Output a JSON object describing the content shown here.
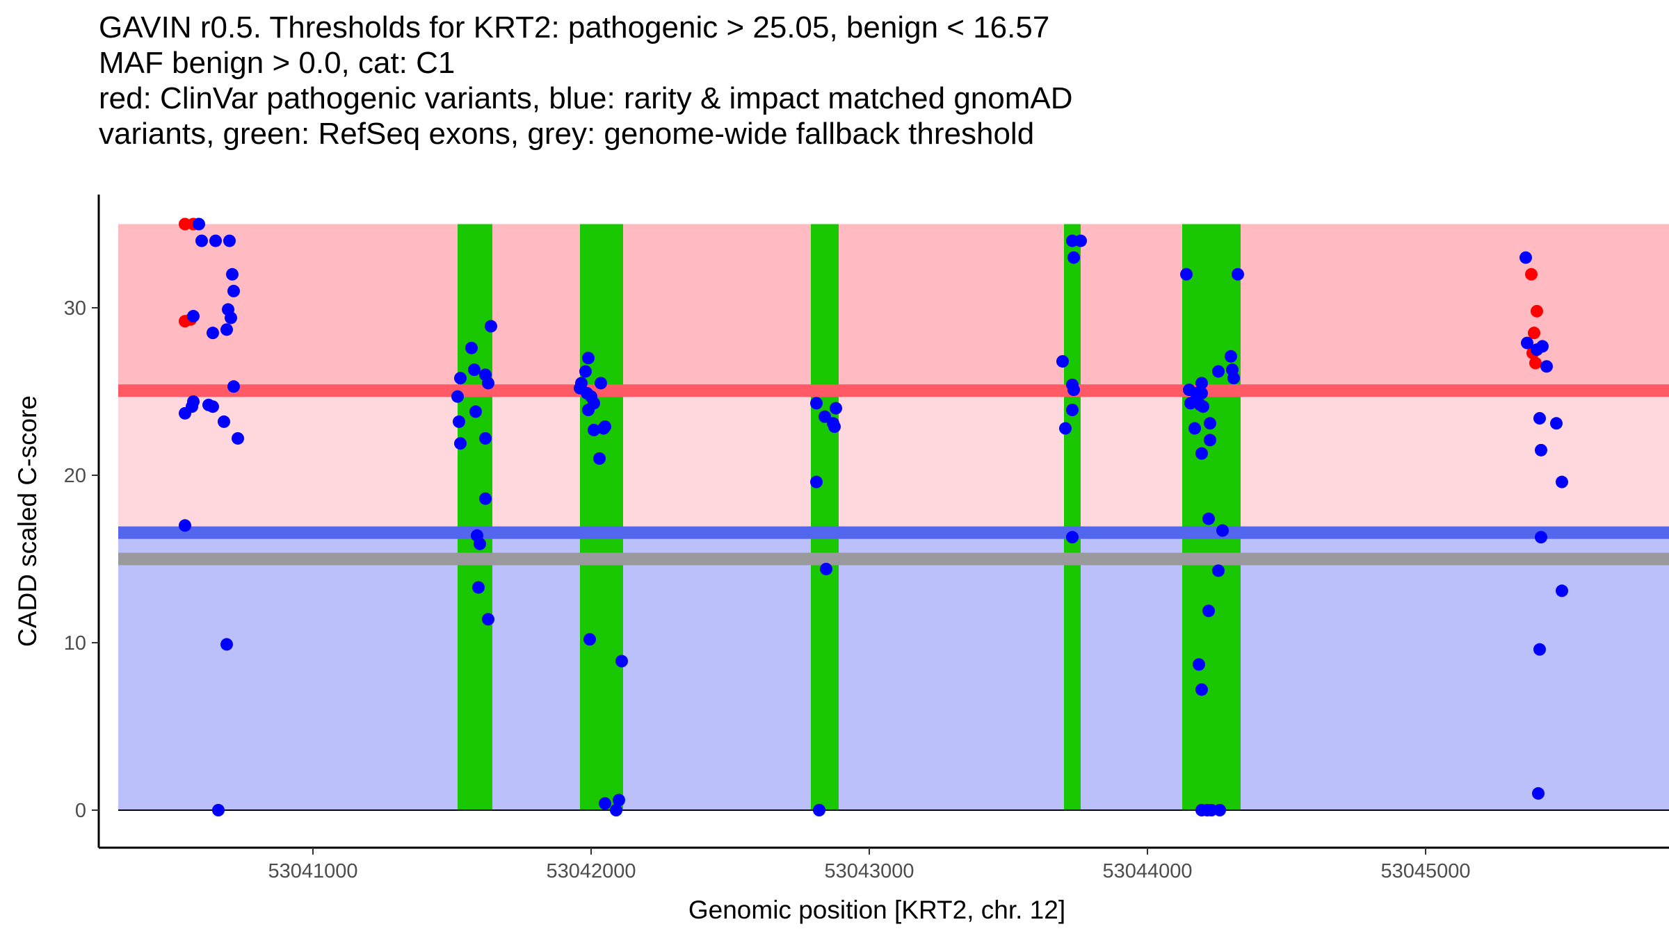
{
  "chart_data": {
    "type": "scatter",
    "title_lines": [
      "GAVIN r0.5. Thresholds for KRT2: pathogenic > 25.05, benign < 16.57",
      "MAF benign > 0.0, cat: C1",
      "red: ClinVar pathogenic variants, blue: rarity & impact matched gnomAD",
      "variants, green: RefSeq exons, grey: genome-wide fallback threshold"
    ],
    "xlabel": "Genomic position [KRT2, chr. 12]",
    "ylabel": "CADD scaled C-score",
    "xlim": [
      53040300,
      53045750
    ],
    "ylim": [
      -1.8,
      35.0
    ],
    "x_ticks": [
      53041000,
      53042000,
      53043000,
      53044000,
      53045000
    ],
    "x_tick_labels": [
      "53041000",
      "53042000",
      "53043000",
      "53044000",
      "53045000"
    ],
    "y_ticks": [
      0,
      10,
      20,
      30
    ],
    "y_tick_labels": [
      "0",
      "10",
      "20",
      "30"
    ],
    "grid": false,
    "thresholds": {
      "pathogenic": 25.05,
      "benign": 16.57,
      "genome_wide_fallback": 15.0,
      "maf_benign": 0.0,
      "category": "C1"
    },
    "regions": [
      {
        "name": "pathogenic-zone",
        "y": [
          25.05,
          35.0
        ],
        "color": "#ffbbc1"
      },
      {
        "name": "uncertain-zone",
        "y": [
          16.57,
          25.05
        ],
        "color": "#ffd8dd"
      },
      {
        "name": "benign-zone",
        "y": [
          0,
          16.57
        ],
        "color": "#bbc0fa"
      }
    ],
    "threshold_lines": [
      {
        "name": "pathogenic-threshold",
        "y": 25.05,
        "color": "#ff5a66"
      },
      {
        "name": "benign-threshold",
        "y": 16.57,
        "color": "#5266ee"
      },
      {
        "name": "fallback-threshold",
        "y": 15.0,
        "color": "#9a9a9e"
      }
    ],
    "exons": [
      {
        "start": 53041520,
        "end": 53041645
      },
      {
        "start": 53041960,
        "end": 53042115
      },
      {
        "start": 53042790,
        "end": 53042890
      },
      {
        "start": 53043700,
        "end": 53043760
      },
      {
        "start": 53044125,
        "end": 53044335
      }
    ],
    "series": [
      {
        "name": "ClinVar pathogenic variants",
        "color": "#ff0000",
        "points": [
          [
            53040540,
            35.0
          ],
          [
            53040570,
            35.0
          ],
          [
            53040540,
            29.2
          ],
          [
            53040560,
            29.3
          ],
          [
            53045380,
            32.0
          ],
          [
            53045390,
            28.5
          ],
          [
            53045400,
            29.8
          ],
          [
            53045385,
            27.3
          ],
          [
            53045395,
            26.7
          ]
        ]
      },
      {
        "name": "gnomAD rarity & impact matched variants",
        "color": "#0000ff",
        "points": [
          [
            53040590,
            35.0
          ],
          [
            53040600,
            34.0
          ],
          [
            53040650,
            34.0
          ],
          [
            53040700,
            34.0
          ],
          [
            53040710,
            32.0
          ],
          [
            53040715,
            31.0
          ],
          [
            53040570,
            29.5
          ],
          [
            53040695,
            29.9
          ],
          [
            53040705,
            29.4
          ],
          [
            53040640,
            28.5
          ],
          [
            53040690,
            28.7
          ],
          [
            53040715,
            25.3
          ],
          [
            53040540,
            23.7
          ],
          [
            53040570,
            24.4
          ],
          [
            53040565,
            24.1
          ],
          [
            53040625,
            24.2
          ],
          [
            53040640,
            24.1
          ],
          [
            53040680,
            23.2
          ],
          [
            53040730,
            22.2
          ],
          [
            53040540,
            17.0
          ],
          [
            53040690,
            9.9
          ],
          [
            53040660,
            0.0
          ],
          [
            53041570,
            27.6
          ],
          [
            53041640,
            28.9
          ],
          [
            53041580,
            26.3
          ],
          [
            53041620,
            26.0
          ],
          [
            53041530,
            25.8
          ],
          [
            53041630,
            25.5
          ],
          [
            53041520,
            24.7
          ],
          [
            53041585,
            23.8
          ],
          [
            53041525,
            23.2
          ],
          [
            53041620,
            22.2
          ],
          [
            53041530,
            21.9
          ],
          [
            53041620,
            18.6
          ],
          [
            53041590,
            16.4
          ],
          [
            53041600,
            15.9
          ],
          [
            53041595,
            13.3
          ],
          [
            53041630,
            11.4
          ],
          [
            53041990,
            27.0
          ],
          [
            53041980,
            26.2
          ],
          [
            53041965,
            25.5
          ],
          [
            53041960,
            25.2
          ],
          [
            53042035,
            25.5
          ],
          [
            53041985,
            24.9
          ],
          [
            53042000,
            24.7
          ],
          [
            53042010,
            24.3
          ],
          [
            53041990,
            23.9
          ],
          [
            53042050,
            22.9
          ],
          [
            53042010,
            22.7
          ],
          [
            53042045,
            22.8
          ],
          [
            53042030,
            21.0
          ],
          [
            53041995,
            10.2
          ],
          [
            53042110,
            8.9
          ],
          [
            53042050,
            0.4
          ],
          [
            53042100,
            0.6
          ],
          [
            53042090,
            0.0
          ],
          [
            53042810,
            24.3
          ],
          [
            53042880,
            24.0
          ],
          [
            53042840,
            23.5
          ],
          [
            53042870,
            23.1
          ],
          [
            53042875,
            22.9
          ],
          [
            53042810,
            19.6
          ],
          [
            53042845,
            14.4
          ],
          [
            53042820,
            0.0
          ],
          [
            53043730,
            34.0
          ],
          [
            53043760,
            34.0
          ],
          [
            53043735,
            33.0
          ],
          [
            53043695,
            26.8
          ],
          [
            53043730,
            25.4
          ],
          [
            53043735,
            25.1
          ],
          [
            53043730,
            23.9
          ],
          [
            53043705,
            22.8
          ],
          [
            53043730,
            16.3
          ],
          [
            53044140,
            32.0
          ],
          [
            53044325,
            32.0
          ],
          [
            53044300,
            27.1
          ],
          [
            53044255,
            26.2
          ],
          [
            53044305,
            26.3
          ],
          [
            53044310,
            25.8
          ],
          [
            53044195,
            25.5
          ],
          [
            53044150,
            25.1
          ],
          [
            53044175,
            24.9
          ],
          [
            53044195,
            24.9
          ],
          [
            53044155,
            24.3
          ],
          [
            53044170,
            24.4
          ],
          [
            53044190,
            24.2
          ],
          [
            53044200,
            24.1
          ],
          [
            53044225,
            23.1
          ],
          [
            53044170,
            22.8
          ],
          [
            53044225,
            22.1
          ],
          [
            53044195,
            21.3
          ],
          [
            53044220,
            17.4
          ],
          [
            53044270,
            16.7
          ],
          [
            53044255,
            14.3
          ],
          [
            53044220,
            11.9
          ],
          [
            53044185,
            8.7
          ],
          [
            53044195,
            7.2
          ],
          [
            53044195,
            0.0
          ],
          [
            53044215,
            0.0
          ],
          [
            53044230,
            0.0
          ],
          [
            53044260,
            0.0
          ],
          [
            53045360,
            33.0
          ],
          [
            53045365,
            27.9
          ],
          [
            53045400,
            27.5
          ],
          [
            53045420,
            27.7
          ],
          [
            53045435,
            26.5
          ],
          [
            53045410,
            23.4
          ],
          [
            53045470,
            23.1
          ],
          [
            53045415,
            21.5
          ],
          [
            53045490,
            19.6
          ],
          [
            53045415,
            16.3
          ],
          [
            53045490,
            13.1
          ],
          [
            53045410,
            9.6
          ],
          [
            53045405,
            1.0
          ]
        ]
      }
    ]
  }
}
